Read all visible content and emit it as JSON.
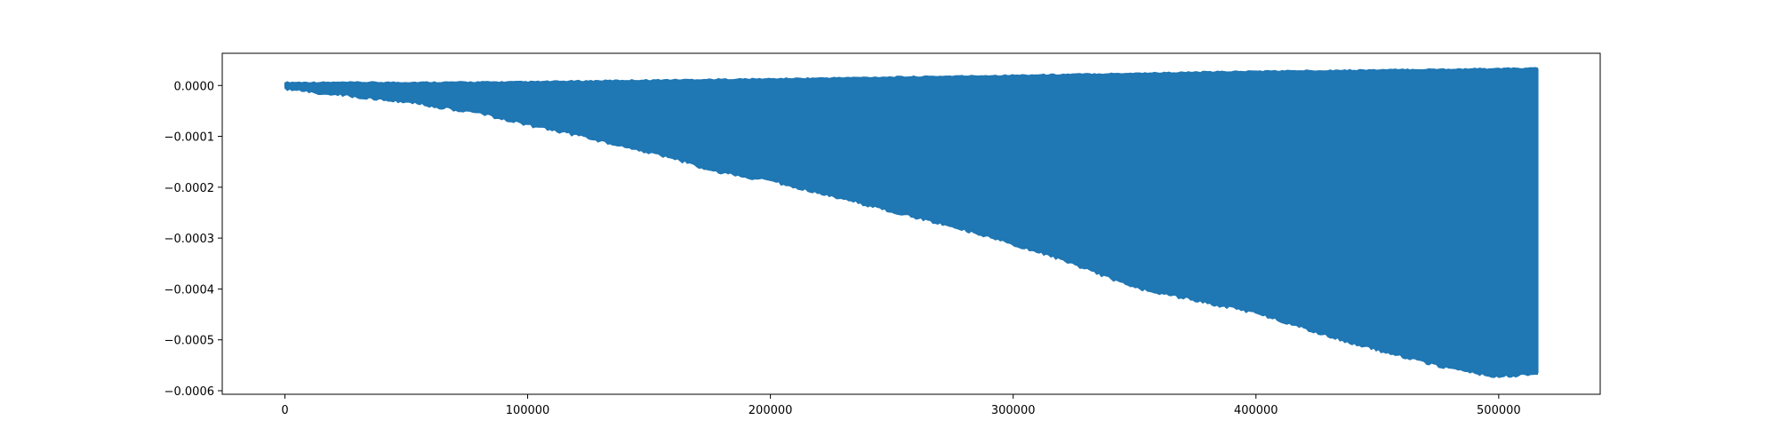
{
  "chart_data": {
    "type": "line",
    "title": "",
    "xlabel": "",
    "ylabel": "",
    "xlim": [
      -25800,
      541800
    ],
    "ylim": [
      -0.000607,
      6.33e-05
    ],
    "x_ticks": [
      {
        "value": 0,
        "label": "0"
      },
      {
        "value": 100000,
        "label": "100000"
      },
      {
        "value": 200000,
        "label": "200000"
      },
      {
        "value": 300000,
        "label": "300000"
      },
      {
        "value": 400000,
        "label": "400000"
      },
      {
        "value": 500000,
        "label": "500000"
      }
    ],
    "y_ticks": [
      {
        "value": 0.0,
        "label": "0.0000"
      },
      {
        "value": -0.0001,
        "label": "−0.0001"
      },
      {
        "value": -0.0002,
        "label": "−0.0002"
      },
      {
        "value": -0.0003,
        "label": "−0.0003"
      },
      {
        "value": -0.0004,
        "label": "−0.0004"
      },
      {
        "value": -0.0005,
        "label": "−0.0005"
      },
      {
        "value": -0.0006,
        "label": "−0.0006"
      }
    ],
    "grid": false,
    "legend": "none",
    "series": [
      {
        "color": "#1f77b4",
        "x_range": [
          0,
          516000
        ],
        "description": "dense oscillating signal",
        "upper_envelope": {
          "x": [
            0,
            50000,
            100000,
            140000,
            200000,
            300000,
            400000,
            500000,
            516000
          ],
          "y": [
            5e-06,
            5e-06,
            6e-06,
            9e-06,
            1.2e-05,
            1.9e-05,
            2.7e-05,
            3.2e-05,
            3.3e-05
          ]
        },
        "lower_envelope": {
          "x": [
            0,
            20000,
            50000,
            80000,
            100000,
            120000,
            140000,
            160000,
            175000,
            200000,
            220000,
            250000,
            280000,
            300000,
            320000,
            350000,
            380000,
            400000,
            420000,
            440000,
            460000,
            480000,
            500000,
            516000
          ],
          "y": [
            -5e-06,
            -1.5e-05,
            -3e-05,
            -5.2e-05,
            -7.5e-05,
            -9.5e-05,
            -0.000118,
            -0.00014,
            -0.000165,
            -0.000185,
            -0.000208,
            -0.000245,
            -0.000282,
            -0.00031,
            -0.00034,
            -0.000395,
            -0.000425,
            -0.000445,
            -0.000475,
            -0.000505,
            -0.00053,
            -0.000555,
            -0.00057,
            -0.000565
          ]
        }
      }
    ]
  }
}
